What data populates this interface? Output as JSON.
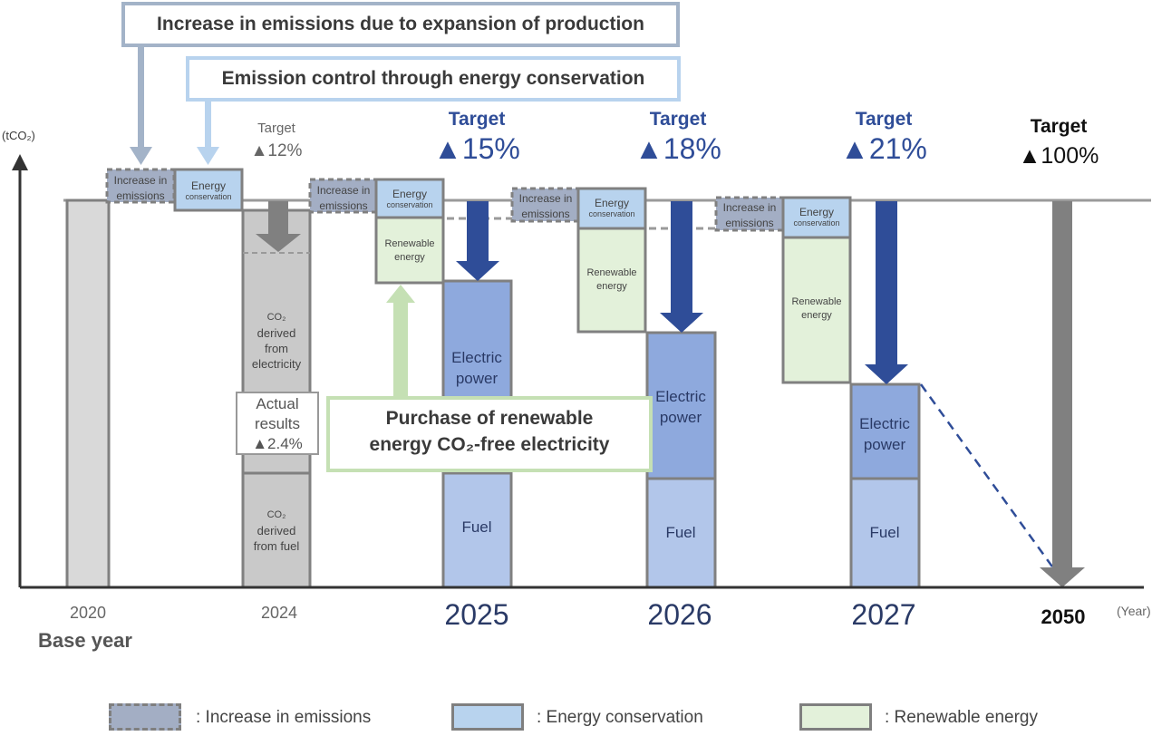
{
  "chart_data": {
    "type": "bar",
    "ylabel": "(tCO₂)",
    "xlabel": "(Year)",
    "categories": [
      "2020",
      "2024",
      "2025",
      "2026",
      "2027",
      "2050"
    ],
    "base_year_label": "Base year",
    "targets": [
      {
        "year": "2024",
        "label": "Target",
        "value": "▲12%"
      },
      {
        "year": "2025",
        "label": "Target",
        "value": "▲15%"
      },
      {
        "year": "2026",
        "label": "Target",
        "value": "▲18%"
      },
      {
        "year": "2027",
        "label": "Target",
        "value": "▲21%"
      },
      {
        "year": "2050",
        "label": "Target",
        "value": "▲100%"
      }
    ],
    "actual_results": {
      "year": "2024",
      "label_line1": "Actual",
      "label_line2": "results",
      "value": "▲2.4%"
    },
    "segment_labels": {
      "increase": [
        "Increase in",
        "emissions"
      ],
      "conservation": [
        "Energy",
        "conservation"
      ],
      "renewable": [
        "Renewable",
        "energy"
      ],
      "electric": [
        "Electric",
        "power"
      ],
      "fuel": "Fuel",
      "co2_electricity": [
        "CO₂",
        "derived",
        "from",
        "electricity"
      ],
      "co2_fuel": [
        "CO₂",
        "derived",
        "from fuel"
      ]
    },
    "callouts": {
      "production": "Increase in emissions due to expansion of production",
      "conservation": "Emission control through energy conservation",
      "purchase_line1": "Purchase of renewable",
      "purchase_line2": "energy CO₂-free electricity"
    },
    "legend": [
      {
        "label": ": Increase in emissions",
        "color": "#a3aec4"
      },
      {
        "label": ": Energy conservation",
        "color": "#b8d3ee"
      },
      {
        "label": ": Renewable energy",
        "color": "#e3f1da"
      }
    ],
    "colors": {
      "baseline": "#9a9a9a",
      "base_bar": "#d9d9d9",
      "co2_2024": "#c9c9c9",
      "electric": "#8ea9dd",
      "fuel": "#b2c6ea",
      "arrow_blue": "#2f4d98",
      "arrow_gray": "#808080",
      "target_blue": "#2f4d98",
      "renewable_arrow": "#c5e0b4"
    }
  }
}
